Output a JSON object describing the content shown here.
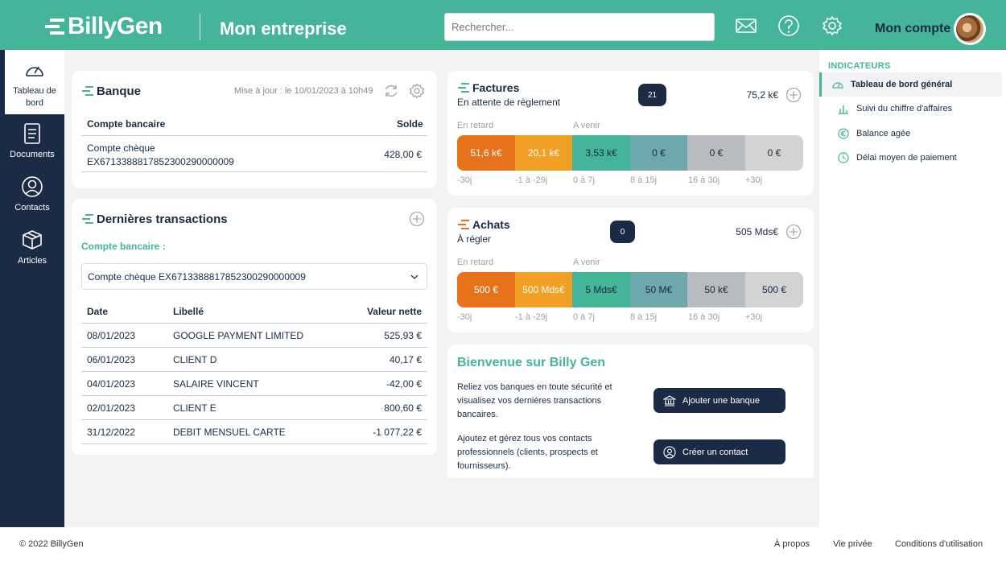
{
  "brand": {
    "logo_text": "BillyGen",
    "company": "Mon entreprise"
  },
  "header": {
    "search_placeholder": "Rechercher...",
    "account_label": "Mon compte",
    "icons": [
      "mail-icon",
      "help-icon",
      "settings-icon"
    ]
  },
  "colors": {
    "primary": "#44b49b",
    "navy": "#1c2b45",
    "orange": "#e8721c",
    "amber": "#f0a024"
  },
  "nav": {
    "items": [
      "Tableau de bord",
      "Documents",
      "Contacts",
      "Articles"
    ],
    "active": "Tableau de bord"
  },
  "bank": {
    "title": "Banque",
    "updated": "Mise à jour : le 10/01/2023 à 10h49",
    "col_account": "Compte bancaire",
    "col_balance": "Solde",
    "account_line1": "Compte chèque",
    "account_line2": "EX6713388817852300290000009",
    "balance": "428,00 €"
  },
  "transactions": {
    "title": "Dernières transactions",
    "account_label": "Compte bancaire :",
    "selected_account": "Compte chèque EX6713388817852300290000009",
    "columns": [
      "Date",
      "Libellé",
      "Valeur nette"
    ],
    "rows": [
      {
        "date": "08/01/2023",
        "label": "GOOGLE PAYMENT LIMITED",
        "amount": "525,93 €"
      },
      {
        "date": "06/01/2023",
        "label": "CLIENT D",
        "amount": "40,17 €"
      },
      {
        "date": "04/01/2023",
        "label": "SALAIRE VINCENT",
        "amount": "-42,00 €"
      },
      {
        "date": "02/01/2023",
        "label": "CLIENT E",
        "amount": "800,60 €"
      },
      {
        "date": "31/12/2022",
        "label": "DEBIT MENSUEL CARTE",
        "amount": "-1 077,22 €"
      }
    ]
  },
  "invoices": {
    "title": "Factures",
    "subtitle": "En attente de règlement",
    "count": "21",
    "total": "75,2 k€",
    "late_label": "En retard",
    "upcoming_label": "A venir",
    "segments": [
      "51,6 k€",
      "20,1 k€",
      "3,53 k€",
      "0 €",
      "0 €",
      "0 €"
    ],
    "ranges": [
      "-30j",
      "-1 à -29j",
      "0 à 7j",
      "8 à 15j",
      "16 à 30j",
      "+30j"
    ]
  },
  "purchases": {
    "title": "Achats",
    "subtitle": "À régler",
    "count": "0",
    "total": "505 Mds€",
    "late_label": "En retard",
    "upcoming_label": "A venir",
    "segments": [
      "500 €",
      "500 Mds€",
      "5 Mds€",
      "50 M€",
      "50 k€",
      "500 €"
    ],
    "ranges": [
      "-30j",
      "-1 à -29j",
      "0 à 7j",
      "8 à 15j",
      "16 à 30j",
      "+30j"
    ]
  },
  "welcome": {
    "title": "Bienvenue sur Billy Gen",
    "bank_text": "Reliez vos banques en toute sécurité et visualisez vos dernières transactions bancaires.",
    "bank_button": "Ajouter une banque",
    "contact_text": "Ajoutez et gérez tous vos contacts professionnels (clients, prospects et fournisseurs).",
    "contact_button": "Créer un contact"
  },
  "indicators": {
    "heading": "INDICATEURS",
    "items": [
      "Tableau de bord général",
      "Suivi du chiffre d'affaires",
      "Balance agée",
      "Délai moyen de paiement"
    ]
  },
  "footer": {
    "copyright": "© 2022 BillyGen",
    "links": [
      "À propos",
      "Vie privée",
      "Conditions d'utilisation"
    ]
  }
}
